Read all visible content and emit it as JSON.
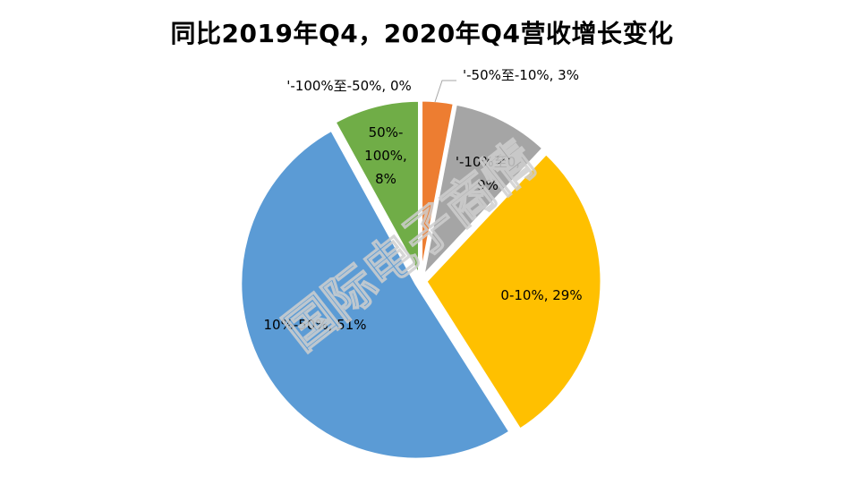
{
  "watermark": "国际电子商情",
  "chart_data": {
    "type": "pie",
    "title": "同比2019年Q4，2020年Q4营收增长变化",
    "start_angle_deg": 0,
    "direction": "clockwise",
    "slices": [
      {
        "label": "'-100%至-50%",
        "value": 0,
        "data_label": "'-100%至-50%, 0%",
        "color": "#4472C4"
      },
      {
        "label": "'-50%至-10%",
        "value": 3,
        "data_label": "'-50%至-10%, 3%",
        "color": "#ED7D31"
      },
      {
        "label": "'-10%至0",
        "value": 9,
        "data_label": "'-10%至0, 9%",
        "color": "#A5A5A5"
      },
      {
        "label": "0-10%",
        "value": 29,
        "data_label": "0-10%, 29%",
        "color": "#FFC000"
      },
      {
        "label": "10%-50%",
        "value": 51,
        "data_label": "10%-50%, 51%",
        "color": "#5B9BD5"
      },
      {
        "label": "50%-100%",
        "value": 8,
        "data_label": "50%-100%, 8%",
        "color": "#70AD47"
      }
    ],
    "legend": "none"
  }
}
